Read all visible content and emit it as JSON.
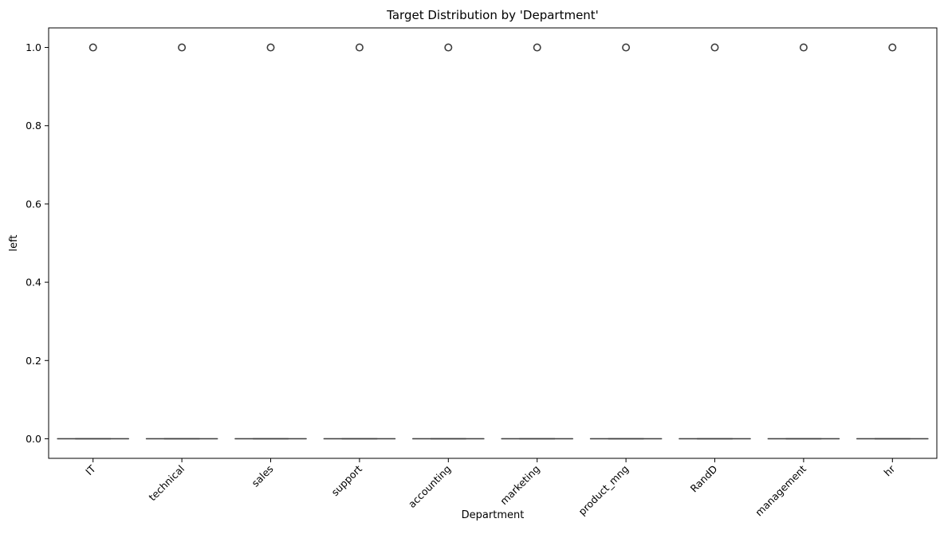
{
  "chart_data": {
    "type": "box",
    "title": "Target Distribution by 'Department'",
    "xlabel": "Department",
    "ylabel": "left",
    "categories": [
      "IT",
      "technical",
      "sales",
      "support",
      "accounting",
      "marketing",
      "product_mng",
      "RandD",
      "management",
      "hr"
    ],
    "boxes": [
      {
        "q1": 0,
        "median": 0,
        "q3": 0,
        "whisker_low": 0,
        "whisker_high": 0,
        "outliers": [
          1.0
        ]
      },
      {
        "q1": 0,
        "median": 0,
        "q3": 0,
        "whisker_low": 0,
        "whisker_high": 0,
        "outliers": [
          1.0
        ]
      },
      {
        "q1": 0,
        "median": 0,
        "q3": 0,
        "whisker_low": 0,
        "whisker_high": 0,
        "outliers": [
          1.0
        ]
      },
      {
        "q1": 0,
        "median": 0,
        "q3": 0,
        "whisker_low": 0,
        "whisker_high": 0,
        "outliers": [
          1.0
        ]
      },
      {
        "q1": 0,
        "median": 0,
        "q3": 0,
        "whisker_low": 0,
        "whisker_high": 0,
        "outliers": [
          1.0
        ]
      },
      {
        "q1": 0,
        "median": 0,
        "q3": 0,
        "whisker_low": 0,
        "whisker_high": 0,
        "outliers": [
          1.0
        ]
      },
      {
        "q1": 0,
        "median": 0,
        "q3": 0,
        "whisker_low": 0,
        "whisker_high": 0,
        "outliers": [
          1.0
        ]
      },
      {
        "q1": 0,
        "median": 0,
        "q3": 0,
        "whisker_low": 0,
        "whisker_high": 0,
        "outliers": [
          1.0
        ]
      },
      {
        "q1": 0,
        "median": 0,
        "q3": 0,
        "whisker_low": 0,
        "whisker_high": 0,
        "outliers": [
          1.0
        ]
      },
      {
        "q1": 0,
        "median": 0,
        "q3": 0,
        "whisker_low": 0,
        "whisker_high": 0,
        "outliers": [
          1.0
        ]
      }
    ],
    "yticks": [
      0.0,
      0.2,
      0.4,
      0.6,
      0.8,
      1.0
    ],
    "ytick_labels": [
      "0.0",
      "0.2",
      "0.4",
      "0.6",
      "0.8",
      "1.0"
    ],
    "ylim": [
      -0.05,
      1.05
    ],
    "grid": false,
    "legend": "none",
    "colors": {
      "box_line": "#3f3f3f",
      "box_fill": "#1f77b4",
      "axis": "#000000"
    }
  }
}
